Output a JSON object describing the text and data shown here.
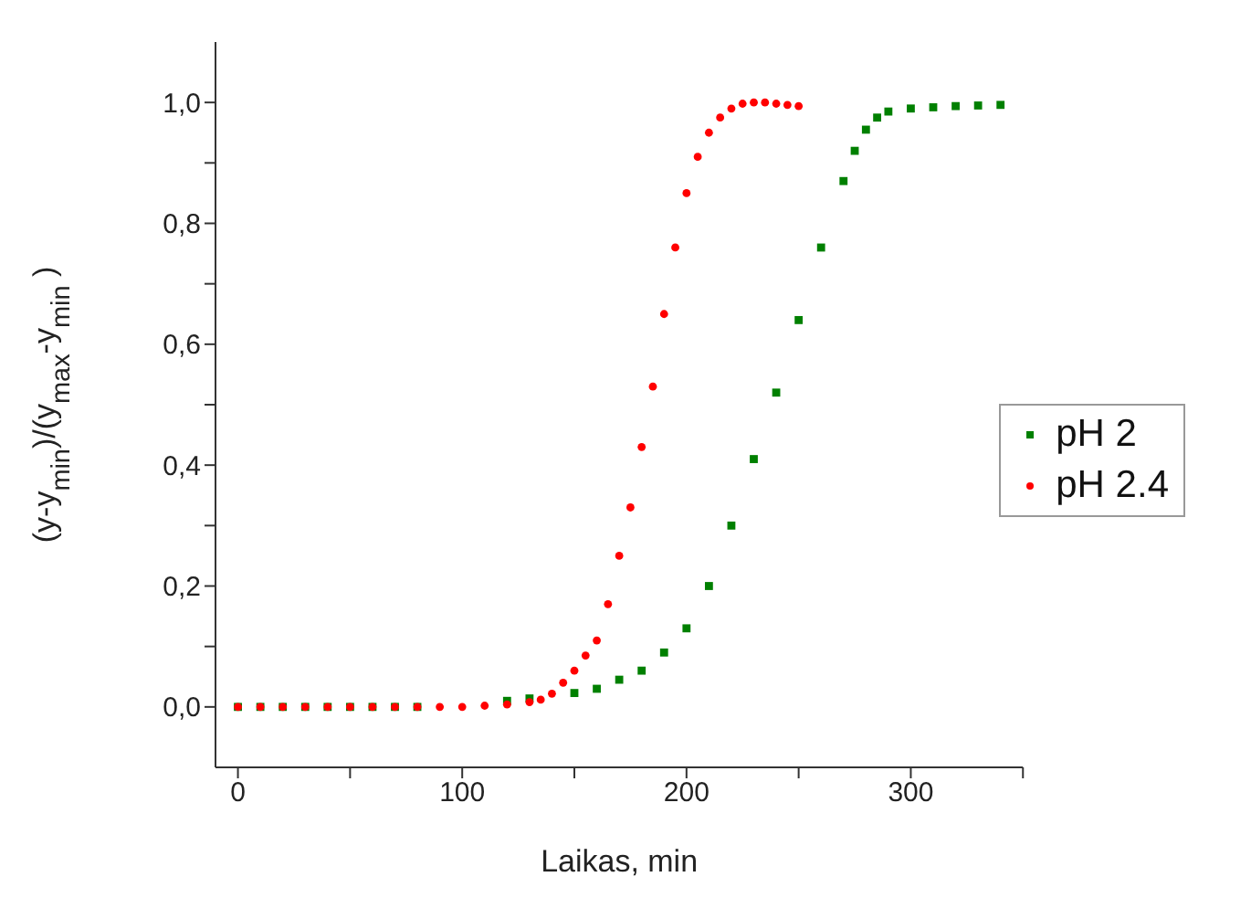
{
  "chart_data": {
    "type": "scatter",
    "xlabel": "Laikas, min",
    "ylabel": "(y-y$_{min}$)/(y$_{max}$-y$_{min}$ )",
    "xlim": [
      -10,
      350
    ],
    "ylim": [
      -0.1,
      1.1
    ],
    "xticks": [
      0,
      {
        "value": 50,
        "label": null
      },
      100,
      {
        "value": 150,
        "label": null
      },
      200,
      {
        "value": 250,
        "label": null
      },
      300,
      {
        "value": 350,
        "label": null
      }
    ],
    "yticks": [
      {
        "value": 0,
        "label": "0,0"
      },
      {
        "value": 0.1,
        "label": null
      },
      {
        "value": 0.2,
        "label": "0,2"
      },
      {
        "value": 0.3,
        "label": null
      },
      {
        "value": 0.4,
        "label": "0,4"
      },
      {
        "value": 0.5,
        "label": null
      },
      {
        "value": 0.6,
        "label": "0,6"
      },
      {
        "value": 0.7,
        "label": null
      },
      {
        "value": 0.8,
        "label": "0,8"
      },
      {
        "value": 0.9,
        "label": null
      },
      {
        "value": 1.0,
        "label": "1,0"
      }
    ],
    "grid": false,
    "legend": "right",
    "series": [
      {
        "name": "pH 2",
        "color": "#008000",
        "marker": "square",
        "x": [
          0,
          10,
          20,
          30,
          40,
          50,
          60,
          70,
          80,
          90,
          100,
          110,
          120,
          130,
          140,
          150,
          160,
          170,
          180,
          190,
          200,
          210,
          220,
          230,
          240,
          250,
          260,
          270,
          275,
          280,
          285,
          290,
          300,
          310,
          320,
          330,
          340
        ],
        "values": [
          0,
          0,
          0,
          0,
          0,
          0,
          0,
          0,
          0,
          null,
          null,
          null,
          0.01,
          0.014,
          null,
          0.023,
          0.03,
          0.045,
          0.06,
          0.09,
          0.13,
          0.2,
          0.3,
          0.41,
          0.52,
          0.64,
          0.76,
          0.87,
          0.92,
          0.955,
          0.975,
          0.985,
          0.99,
          0.992,
          0.994,
          0.995,
          0.996
        ]
      },
      {
        "name": "pH 2.4",
        "color": "#ff0000",
        "marker": "circle",
        "x": [
          0,
          10,
          20,
          30,
          40,
          50,
          60,
          70,
          80,
          90,
          100,
          110,
          120,
          130,
          135,
          140,
          145,
          150,
          155,
          160,
          165,
          170,
          175,
          180,
          185,
          190,
          195,
          200,
          205,
          210,
          215,
          220,
          225,
          230,
          235,
          240,
          245,
          250
        ],
        "values": [
          0,
          0,
          0,
          0,
          0,
          0,
          0,
          0,
          0,
          0,
          0,
          0.002,
          0.004,
          0.008,
          0.012,
          0.022,
          0.04,
          0.06,
          0.085,
          0.11,
          0.17,
          0.25,
          0.33,
          0.43,
          0.53,
          0.65,
          0.76,
          0.85,
          0.91,
          0.95,
          0.975,
          0.99,
          0.998,
          1.0,
          1.0,
          0.998,
          0.996,
          0.994
        ]
      }
    ]
  }
}
